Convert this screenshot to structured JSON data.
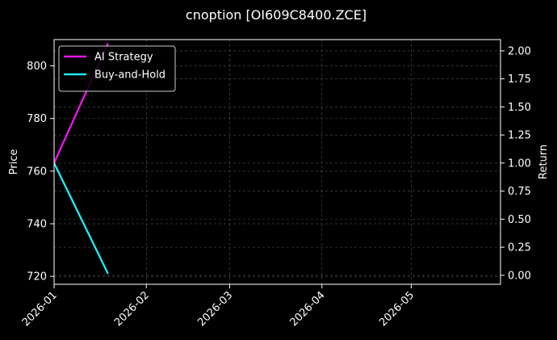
{
  "chart_data": {
    "type": "line",
    "title": "cnoption [OI609C8400.ZCE]",
    "xlabel": "",
    "ylabel": "Price",
    "ylabel_right": "Return",
    "x_range": [
      "2026-01-01",
      "2026-05-31"
    ],
    "ylim": [
      717,
      810
    ],
    "ylim_right": [
      -0.08,
      2.1
    ],
    "x_ticks": [
      "2026-01",
      "2026-02",
      "2026-03",
      "2026-04",
      "2026-05"
    ],
    "y_ticks": [
      720,
      740,
      760,
      780,
      800
    ],
    "y_ticks_right": [
      "0.00",
      "0.25",
      "0.50",
      "0.75",
      "1.00",
      "1.25",
      "1.50",
      "1.75",
      "2.00"
    ],
    "grid": true,
    "legend_position": "top-left",
    "series": [
      {
        "name": "AI Strategy",
        "axis": "right",
        "color": "#e815e8",
        "points": [
          [
            "2026-01-01",
            1.0
          ],
          [
            "2026-01-19",
            2.06
          ]
        ]
      },
      {
        "name": "Buy-and-Hold",
        "axis": "right",
        "color": "#22e6ef",
        "points": [
          [
            "2026-01-01",
            1.0
          ],
          [
            "2026-01-19",
            0.02
          ]
        ]
      }
    ]
  }
}
